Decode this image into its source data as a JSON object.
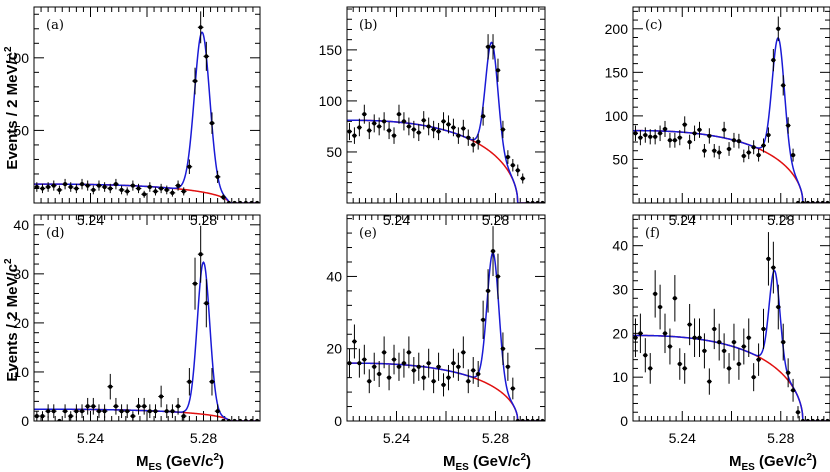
{
  "figure": {
    "ylabel_text": "Events / 2 MeV/c",
    "ylabel_sup": "2",
    "xlabel_main": "M",
    "xlabel_sub": "ES",
    "xlabel_unit": " (GeV/c",
    "xlabel_unit_sup": "2",
    "xlabel_close": ")"
  },
  "colors": {
    "background": "#ffffff",
    "axes": "#000000",
    "data_points": "#000000",
    "background_curve": "#e01010",
    "total_fit_curve": "#1a1ad6"
  },
  "chart_data": [
    {
      "type": "scatter",
      "panel_label": "(a)",
      "xlim": [
        5.22,
        5.3
      ],
      "ylim": [
        0,
        135
      ],
      "xticks": [
        5.24,
        5.28
      ],
      "xtick_labels": [
        "5.24",
        "5.28"
      ],
      "yticks": [
        50,
        100
      ],
      "ytick_labels": [
        "50",
        "100"
      ],
      "grid": false,
      "points": {
        "x": [
          5.221,
          5.223,
          5.225,
          5.227,
          5.229,
          5.231,
          5.233,
          5.235,
          5.237,
          5.239,
          5.241,
          5.243,
          5.245,
          5.247,
          5.249,
          5.251,
          5.253,
          5.255,
          5.257,
          5.259,
          5.261,
          5.263,
          5.265,
          5.267,
          5.269,
          5.271,
          5.273,
          5.275,
          5.277,
          5.279,
          5.281,
          5.283,
          5.285,
          5.287,
          5.289,
          5.291,
          5.293,
          5.295,
          5.297,
          5.299
        ],
        "y": [
          11,
          10,
          11,
          12,
          9,
          13,
          11,
          10,
          13,
          12,
          9,
          12,
          11,
          10,
          13,
          9,
          8,
          12,
          10,
          6,
          11,
          8,
          10,
          9,
          7,
          12,
          8,
          25,
          84,
          121,
          101,
          55,
          18,
          4,
          0,
          0,
          0,
          0,
          0,
          0
        ],
        "yerr": [
          3.3,
          3.2,
          3.3,
          3.5,
          3.0,
          3.6,
          3.3,
          3.2,
          3.6,
          3.5,
          3.0,
          3.5,
          3.3,
          3.2,
          3.6,
          3.0,
          2.8,
          3.5,
          3.2,
          2.4,
          3.3,
          2.8,
          3.2,
          3.0,
          2.6,
          3.5,
          2.8,
          5.0,
          9.2,
          11.0,
          10.0,
          7.4,
          4.2,
          2.0,
          0,
          0,
          0,
          0,
          0,
          0
        ]
      },
      "background_fit": {
        "model": "argus",
        "endpoint": 5.289,
        "norm": 13,
        "c": 20
      },
      "signal_fit": {
        "model": "gaussian",
        "mean": 5.2795,
        "sigma": 0.0027,
        "peak": 110
      }
    },
    {
      "type": "scatter",
      "panel_label": "(b)",
      "xlim": [
        5.22,
        5.3
      ],
      "ylim": [
        0,
        192
      ],
      "xticks": [
        5.24,
        5.28
      ],
      "xtick_labels": [
        "5.24",
        "5.28"
      ],
      "yticks": [
        50,
        100,
        150
      ],
      "ytick_labels": [
        "50",
        "100",
        "150"
      ],
      "grid": false,
      "points": {
        "x": [
          5.221,
          5.223,
          5.225,
          5.227,
          5.229,
          5.231,
          5.233,
          5.235,
          5.237,
          5.239,
          5.241,
          5.243,
          5.245,
          5.247,
          5.249,
          5.251,
          5.253,
          5.255,
          5.257,
          5.259,
          5.261,
          5.263,
          5.265,
          5.267,
          5.269,
          5.271,
          5.273,
          5.275,
          5.277,
          5.279,
          5.281,
          5.283,
          5.285,
          5.287,
          5.289,
          5.291,
          5.293,
          5.295,
          5.297,
          5.299
        ],
        "y": [
          70,
          66,
          74,
          87,
          71,
          78,
          75,
          80,
          71,
          66,
          87,
          80,
          75,
          72,
          69,
          81,
          75,
          72,
          70,
          80,
          77,
          74,
          66,
          73,
          64,
          57,
          60,
          85,
          153,
          153,
          130,
          72,
          45,
          37,
          32,
          24,
          0,
          0,
          0,
          0
        ],
        "yerr": [
          8.4,
          8.1,
          8.6,
          9.3,
          8.4,
          8.8,
          8.7,
          8.9,
          8.4,
          8.1,
          9.3,
          8.9,
          8.7,
          8.5,
          8.3,
          9.0,
          8.7,
          8.5,
          8.4,
          8.9,
          8.8,
          8.6,
          8.1,
          8.5,
          8.0,
          7.5,
          7.7,
          9.2,
          12.4,
          12.4,
          11.4,
          8.5,
          6.7,
          6.1,
          5.7,
          4.9,
          0,
          0,
          0,
          0
        ]
      },
      "background_fit": {
        "model": "argus",
        "endpoint": 5.289,
        "norm": 81,
        "c": 20
      },
      "signal_fit": {
        "model": "gaussian",
        "mean": 5.2785,
        "sigma": 0.0025,
        "peak": 108
      }
    },
    {
      "type": "scatter",
      "panel_label": "(c)",
      "xlim": [
        5.22,
        5.3
      ],
      "ylim": [
        0,
        225
      ],
      "xticks": [
        5.24,
        5.28
      ],
      "xtick_labels": [
        "5.24",
        "5.28"
      ],
      "yticks": [
        50,
        100,
        150,
        200
      ],
      "ytick_labels": [
        "50",
        "100",
        "150",
        "200"
      ],
      "grid": false,
      "points": {
        "x": [
          5.221,
          5.223,
          5.225,
          5.227,
          5.229,
          5.231,
          5.233,
          5.235,
          5.237,
          5.239,
          5.241,
          5.243,
          5.245,
          5.247,
          5.249,
          5.251,
          5.253,
          5.255,
          5.257,
          5.259,
          5.261,
          5.263,
          5.265,
          5.267,
          5.269,
          5.271,
          5.273,
          5.275,
          5.277,
          5.279,
          5.281,
          5.283,
          5.285,
          5.287,
          5.289,
          5.291,
          5.293,
          5.295,
          5.297,
          5.299
        ],
        "y": [
          80,
          75,
          78,
          76,
          76,
          80,
          85,
          72,
          72,
          75,
          90,
          70,
          80,
          84,
          60,
          77,
          60,
          58,
          84,
          62,
          72,
          71,
          54,
          58,
          64,
          55,
          66,
          78,
          164,
          200,
          135,
          89,
          55,
          0,
          0,
          0,
          0,
          0,
          0,
          0
        ],
        "yerr": [
          8.9,
          8.7,
          8.8,
          8.7,
          8.7,
          8.9,
          9.2,
          8.5,
          8.5,
          8.7,
          9.5,
          8.4,
          8.9,
          9.2,
          7.7,
          8.8,
          7.7,
          7.6,
          9.2,
          7.9,
          8.5,
          8.4,
          7.3,
          7.6,
          8.0,
          7.4,
          8.1,
          8.8,
          12.8,
          14.1,
          11.6,
          9.4,
          7.4,
          0,
          0,
          0,
          0,
          0,
          0,
          0
        ]
      },
      "background_fit": {
        "model": "argus",
        "endpoint": 5.289,
        "norm": 83,
        "c": 20
      },
      "signal_fit": {
        "model": "gaussian",
        "mean": 5.279,
        "sigma": 0.0025,
        "peak": 140
      }
    },
    {
      "type": "scatter",
      "panel_label": "(d)",
      "xlim": [
        5.22,
        5.3
      ],
      "ylim": [
        0,
        42
      ],
      "xticks": [
        5.24,
        5.28
      ],
      "xtick_labels": [
        "5.24",
        "5.28"
      ],
      "yticks": [
        0,
        10,
        20,
        30,
        40
      ],
      "ytick_labels": [
        "0",
        "10",
        "20",
        "30",
        "40"
      ],
      "grid": false,
      "points": {
        "x": [
          5.221,
          5.223,
          5.225,
          5.227,
          5.229,
          5.231,
          5.233,
          5.235,
          5.237,
          5.239,
          5.241,
          5.243,
          5.245,
          5.247,
          5.249,
          5.251,
          5.253,
          5.255,
          5.257,
          5.259,
          5.261,
          5.263,
          5.265,
          5.267,
          5.269,
          5.271,
          5.273,
          5.275,
          5.277,
          5.279,
          5.281,
          5.283,
          5.285,
          5.287,
          5.289,
          5.291,
          5.293,
          5.295,
          5.297,
          5.299
        ],
        "y": [
          1,
          1,
          2,
          2,
          0,
          2,
          1,
          2,
          2,
          3,
          3,
          2,
          2,
          7,
          3,
          2,
          2,
          1,
          3,
          3,
          2,
          2,
          5,
          2,
          2,
          3,
          1,
          8,
          28,
          34,
          24,
          8,
          2,
          0,
          0,
          0,
          0,
          0,
          0,
          0
        ],
        "yerr": [
          1.0,
          1.0,
          1.4,
          1.4,
          0,
          1.4,
          1.0,
          1.4,
          1.4,
          1.7,
          1.7,
          1.4,
          1.4,
          2.6,
          1.7,
          1.4,
          1.4,
          1.0,
          1.7,
          1.7,
          1.4,
          1.4,
          2.2,
          1.4,
          1.4,
          1.7,
          1.0,
          2.8,
          5.3,
          5.8,
          4.9,
          2.8,
          1.4,
          0,
          0,
          0,
          0,
          0,
          0,
          0
        ]
      },
      "background_fit": {
        "model": "argus",
        "endpoint": 5.289,
        "norm": 2.4,
        "c": 20
      },
      "signal_fit": {
        "model": "gaussian",
        "mean": 5.28,
        "sigma": 0.0022,
        "peak": 31
      }
    },
    {
      "type": "scatter",
      "panel_label": "(e)",
      "xlim": [
        5.22,
        5.3
      ],
      "ylim": [
        0,
        57
      ],
      "xticks": [
        5.24,
        5.28
      ],
      "xtick_labels": [
        "5.24",
        "5.28"
      ],
      "yticks": [
        0,
        20,
        40
      ],
      "ytick_labels": [
        "0",
        "20",
        "40"
      ],
      "grid": false,
      "points": {
        "x": [
          5.221,
          5.223,
          5.225,
          5.227,
          5.229,
          5.231,
          5.233,
          5.235,
          5.237,
          5.239,
          5.241,
          5.243,
          5.245,
          5.247,
          5.249,
          5.251,
          5.253,
          5.255,
          5.257,
          5.259,
          5.261,
          5.263,
          5.265,
          5.267,
          5.269,
          5.271,
          5.273,
          5.275,
          5.277,
          5.279,
          5.281,
          5.283,
          5.285,
          5.287,
          5.289,
          5.291,
          5.293,
          5.295,
          5.297,
          5.299
        ],
        "y": [
          16,
          22,
          16,
          17,
          11,
          15,
          13,
          19,
          12,
          17,
          15,
          16,
          19,
          14,
          15,
          12,
          16,
          11,
          15,
          10,
          12,
          16,
          15,
          19,
          11,
          14,
          13,
          28,
          36,
          47,
          40,
          20,
          15,
          9,
          0,
          0,
          0,
          0,
          0,
          0
        ],
        "yerr": [
          4.0,
          4.7,
          4.0,
          4.1,
          3.3,
          3.9,
          3.6,
          4.4,
          3.5,
          4.1,
          3.9,
          4.0,
          4.4,
          3.7,
          3.9,
          3.5,
          4.0,
          3.3,
          3.9,
          3.2,
          3.5,
          4.0,
          3.9,
          4.4,
          3.3,
          3.7,
          3.6,
          5.3,
          6.0,
          6.9,
          6.3,
          4.5,
          3.9,
          3.0,
          0,
          0,
          0,
          0,
          0,
          0
        ]
      },
      "background_fit": {
        "model": "argus",
        "endpoint": 5.289,
        "norm": 16,
        "c": 20
      },
      "signal_fit": {
        "model": "gaussian",
        "mean": 5.279,
        "sigma": 0.0024,
        "peak": 37
      }
    },
    {
      "type": "scatter",
      "panel_label": "(f)",
      "xlim": [
        5.22,
        5.3
      ],
      "ylim": [
        0,
        47
      ],
      "xticks": [
        5.24,
        5.28
      ],
      "xtick_labels": [
        "5.24",
        "5.28"
      ],
      "yticks": [
        0,
        10,
        20,
        30,
        40
      ],
      "ytick_labels": [
        "0",
        "10",
        "20",
        "30",
        "40"
      ],
      "grid": false,
      "points": {
        "x": [
          5.221,
          5.223,
          5.225,
          5.227,
          5.229,
          5.231,
          5.233,
          5.235,
          5.237,
          5.239,
          5.241,
          5.243,
          5.245,
          5.247,
          5.249,
          5.251,
          5.253,
          5.255,
          5.257,
          5.259,
          5.261,
          5.263,
          5.265,
          5.267,
          5.269,
          5.271,
          5.273,
          5.275,
          5.277,
          5.279,
          5.281,
          5.283,
          5.285,
          5.287,
          5.289,
          5.291,
          5.293,
          5.295,
          5.297,
          5.299
        ],
        "y": [
          19,
          20,
          15,
          12,
          29,
          26,
          20,
          17,
          28,
          13,
          12,
          22,
          19,
          19,
          16,
          9,
          21,
          18,
          16,
          12,
          18,
          13,
          17,
          19,
          10,
          14,
          21,
          37,
          35,
          26,
          18,
          11,
          7,
          2,
          0,
          0,
          0,
          0,
          0,
          0
        ],
        "yerr": [
          4.4,
          4.5,
          3.9,
          3.5,
          5.4,
          5.1,
          4.5,
          4.1,
          5.3,
          3.6,
          3.5,
          4.7,
          4.4,
          4.4,
          4.0,
          3.0,
          4.6,
          4.2,
          4.0,
          3.5,
          4.2,
          3.6,
          4.1,
          4.4,
          3.2,
          3.7,
          4.6,
          6.1,
          5.9,
          5.1,
          4.2,
          3.3,
          2.6,
          1.4,
          0,
          0,
          0,
          0,
          0,
          0
        ]
      },
      "background_fit": {
        "model": "argus",
        "endpoint": 5.289,
        "norm": 19.5,
        "c": 20
      },
      "signal_fit": {
        "model": "gaussian",
        "mean": 5.2775,
        "sigma": 0.0022,
        "peak": 22
      }
    }
  ]
}
